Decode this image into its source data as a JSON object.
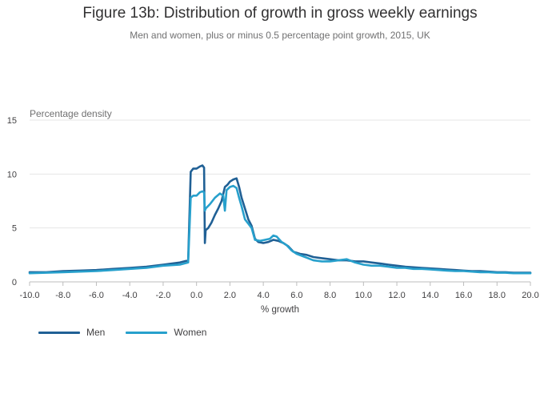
{
  "chart_data": {
    "type": "line",
    "title": "Figure 13b: Distribution of growth in gross weekly earnings",
    "subtitle": "Men and women, plus or minus 0.5 percentage point growth, 2015, UK",
    "ylabel": "Percentage density",
    "xlabel": "% growth",
    "xlim": [
      -10,
      20
    ],
    "ylim": [
      0,
      15
    ],
    "yticks": [
      0,
      5,
      10,
      15
    ],
    "xticks": [
      -10,
      -8,
      -6,
      -4,
      -2,
      0,
      2,
      4,
      6,
      8,
      10,
      12,
      14,
      16,
      18,
      20
    ],
    "xtick_labels": [
      "-10.0",
      "-8.0",
      "-6.0",
      "-4.0",
      "-2.0",
      "0.0",
      "2.0",
      "4.0",
      "6.0",
      "8.0",
      "10.0",
      "12.0",
      "14.0",
      "16.0",
      "18.0",
      "20.0"
    ],
    "series": [
      {
        "name": "Men",
        "color": "#206095",
        "x": [
          -10,
          -9,
          -8,
          -7,
          -6,
          -5,
          -4,
          -3,
          -2,
          -1,
          -0.5,
          -0.35,
          -0.2,
          0,
          0.2,
          0.35,
          0.45,
          0.5,
          0.55,
          0.7,
          0.9,
          1.1,
          1.3,
          1.5,
          1.7,
          1.85,
          2.0,
          2.2,
          2.4,
          2.55,
          2.7,
          2.9,
          3.1,
          3.3,
          3.5,
          3.7,
          4.0,
          4.3,
          4.6,
          4.9,
          5.2,
          5.5,
          5.8,
          6.2,
          6.6,
          7.0,
          7.5,
          8.0,
          8.5,
          9.0,
          9.5,
          10.0,
          10.5,
          11.0,
          11.5,
          12.0,
          12.5,
          13.0,
          13.5,
          14.0,
          14.5,
          15.0,
          15.5,
          16.0,
          16.5,
          17.0,
          17.5,
          18.0,
          18.5,
          19.0,
          19.5,
          20.0
        ],
        "y": [
          0.9,
          0.9,
          1.0,
          1.05,
          1.1,
          1.2,
          1.3,
          1.4,
          1.6,
          1.8,
          2.0,
          10.2,
          10.5,
          10.5,
          10.7,
          10.8,
          10.6,
          3.6,
          4.8,
          5.0,
          5.5,
          6.2,
          6.8,
          7.5,
          8.8,
          9.0,
          9.3,
          9.5,
          9.6,
          8.8,
          7.8,
          6.8,
          5.8,
          5.2,
          4.0,
          3.7,
          3.6,
          3.7,
          3.9,
          3.8,
          3.6,
          3.3,
          2.8,
          2.6,
          2.5,
          2.3,
          2.2,
          2.1,
          2.0,
          2.0,
          1.9,
          1.9,
          1.8,
          1.7,
          1.6,
          1.5,
          1.4,
          1.35,
          1.3,
          1.25,
          1.2,
          1.15,
          1.1,
          1.05,
          1.0,
          1.0,
          0.95,
          0.9,
          0.9,
          0.85,
          0.85,
          0.85
        ]
      },
      {
        "name": "Women",
        "color": "#27a0cc",
        "x": [
          -10,
          -9,
          -8,
          -7,
          -6,
          -5,
          -4,
          -3,
          -2,
          -1,
          -0.5,
          -0.35,
          -0.2,
          0,
          0.2,
          0.35,
          0.45,
          0.5,
          0.55,
          0.8,
          1.1,
          1.4,
          1.6,
          1.7,
          1.8,
          2.0,
          2.2,
          2.4,
          2.55,
          2.7,
          2.9,
          3.1,
          3.3,
          3.5,
          3.8,
          4.1,
          4.4,
          4.6,
          4.8,
          5.1,
          5.4,
          5.7,
          6.0,
          6.5,
          7.0,
          7.5,
          8.0,
          8.5,
          9.0,
          9.5,
          10.0,
          10.5,
          11.0,
          11.5,
          12.0,
          12.5,
          13.0,
          13.5,
          14.0,
          14.5,
          15.0,
          15.5,
          16.0,
          16.5,
          17.0,
          17.5,
          18.0,
          18.5,
          19.0,
          19.5,
          20.0
        ],
        "y": [
          0.8,
          0.85,
          0.9,
          0.95,
          1.0,
          1.1,
          1.2,
          1.3,
          1.5,
          1.6,
          1.8,
          7.8,
          8.0,
          8.0,
          8.3,
          8.4,
          8.3,
          6.6,
          6.8,
          7.2,
          7.8,
          8.2,
          8.0,
          6.6,
          8.5,
          8.8,
          8.9,
          8.7,
          7.8,
          7.0,
          5.8,
          5.4,
          5.0,
          3.9,
          3.8,
          3.9,
          4.0,
          4.3,
          4.2,
          3.7,
          3.4,
          2.9,
          2.6,
          2.3,
          2.0,
          1.9,
          1.9,
          2.0,
          2.1,
          1.8,
          1.6,
          1.5,
          1.5,
          1.4,
          1.3,
          1.3,
          1.2,
          1.2,
          1.15,
          1.1,
          1.05,
          1.0,
          1.0,
          0.95,
          0.9,
          0.9,
          0.85,
          0.85,
          0.8,
          0.8,
          0.8
        ]
      }
    ]
  },
  "legend": {
    "men_label": "Men",
    "women_label": "Women",
    "men_color": "#206095",
    "women_color": "#27a0cc"
  }
}
